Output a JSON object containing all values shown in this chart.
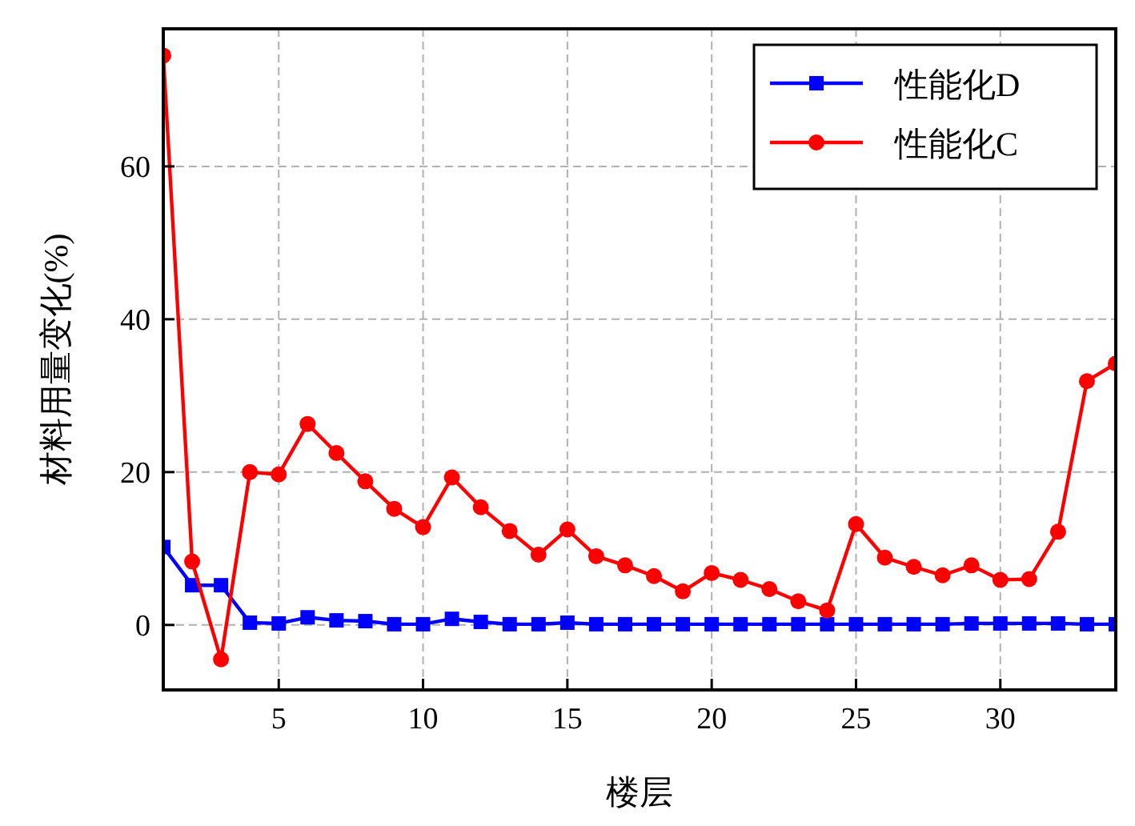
{
  "chart_data": {
    "type": "line",
    "xlabel": "楼层",
    "ylabel": "材料用量变化(%)",
    "x": [
      1,
      2,
      3,
      4,
      5,
      6,
      7,
      8,
      9,
      10,
      11,
      12,
      13,
      14,
      15,
      16,
      17,
      18,
      19,
      20,
      21,
      22,
      23,
      24,
      25,
      26,
      27,
      28,
      29,
      30,
      31,
      32,
      33,
      34
    ],
    "series": [
      {
        "name": "性能化D",
        "color": "#0000ff",
        "marker": "square",
        "values": [
          10.2,
          5.2,
          5.2,
          0.3,
          0.2,
          1,
          0.6,
          0.5,
          0.1,
          0.1,
          0.8,
          0.4,
          0.1,
          0.1,
          0.3,
          0.1,
          0.1,
          0.1,
          0.1,
          0.1,
          0.1,
          0.1,
          0.1,
          0.1,
          0.1,
          0.1,
          0.1,
          0.1,
          0.2,
          0.2,
          0.2,
          0.2,
          0.1,
          0.1
        ]
      },
      {
        "name": "性能化C",
        "color": "#ff0000",
        "marker": "circle",
        "values": [
          74.5,
          8.3,
          -4.5,
          20,
          19.7,
          26.3,
          22.5,
          18.8,
          15.2,
          12.8,
          19.3,
          15.4,
          12.3,
          9.2,
          12.5,
          9,
          7.8,
          6.4,
          4.4,
          6.8,
          5.9,
          4.7,
          3.1,
          1.9,
          13.2,
          8.8,
          7.6,
          6.5,
          7.8,
          5.9,
          6,
          12.2,
          31.9,
          34.2
        ]
      }
    ],
    "xlim": [
      1,
      34
    ],
    "ylim": [
      -8.5,
      78
    ],
    "xticks": [
      5,
      10,
      15,
      20,
      25,
      30
    ],
    "yticks": [
      0,
      20,
      40,
      60
    ],
    "grid": true,
    "legend": "top right",
    "line_style": "solid"
  }
}
